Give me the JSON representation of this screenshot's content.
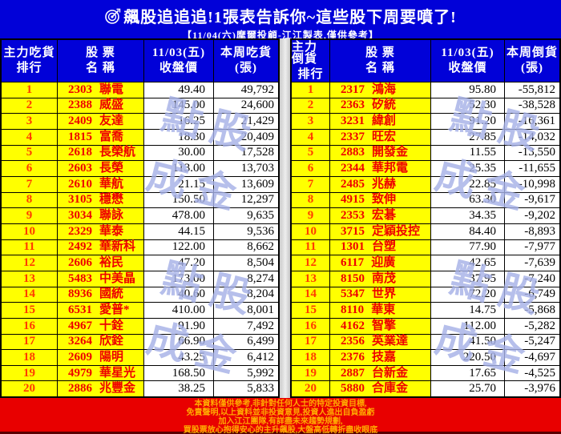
{
  "header": {
    "title": "飆股追追追!1張表告訴你~這些股下周要噴了!",
    "subtitle": "【11/04(六)摩爾投顧-江江製表,僅供參考】"
  },
  "watermark": {
    "line1": "點股",
    "line2": "成金"
  },
  "footer": {
    "lines": [
      "本資料僅供參考,非針對任何人士的特定投資目標,",
      "免責聲明,以上資料並非投資意見,投資人進出自負盈虧",
      "加入江江團隊,有詳盡未來趨勢規劃,",
      "買股票放心抱得安心的主升飆股,大盤高低轉折盡收眼底"
    ]
  },
  "colors": {
    "background_blue": "#0101D8",
    "cell_yellow": "#FFFF00",
    "rank_text": "#FF3C00",
    "name_text": "#EE0000",
    "footer_red": "#E80000",
    "footer_text": "#FFAA00",
    "watermark_blue": "#7A8ADA"
  },
  "chart_data": [
    {
      "type": "table",
      "title": "主力吃貨排行",
      "headers": [
        {
          "line1": "主力吃貨",
          "line2": "排行"
        },
        {
          "line1": "股 票",
          "line2": "名 稱"
        },
        {
          "line1": "11/03(五)",
          "line2": "收盤價"
        },
        {
          "line1": "本周吃貨",
          "line2": "(張)"
        }
      ],
      "rows": [
        [
          "1",
          "2303",
          "聯電",
          "49.40",
          "49,792"
        ],
        [
          "2",
          "2388",
          "威盛",
          "145.00",
          "24,600"
        ],
        [
          "3",
          "2409",
          "友達",
          "16.25",
          "21,429"
        ],
        [
          "4",
          "1815",
          "富喬",
          "18.30",
          "20,409"
        ],
        [
          "5",
          "2618",
          "長榮航",
          "30.00",
          "17,528"
        ],
        [
          "6",
          "2603",
          "長榮",
          "113.00",
          "13,703"
        ],
        [
          "7",
          "2610",
          "華航",
          "21.15",
          "13,609"
        ],
        [
          "8",
          "3105",
          "穩懋",
          "150.50",
          "12,297"
        ],
        [
          "9",
          "3034",
          "聯詠",
          "478.00",
          "9,635"
        ],
        [
          "10",
          "2329",
          "華泰",
          "44.15",
          "9,536"
        ],
        [
          "11",
          "2492",
          "華新科",
          "122.00",
          "8,662"
        ],
        [
          "12",
          "2606",
          "裕民",
          "47.20",
          "8,504"
        ],
        [
          "13",
          "5483",
          "中美晶",
          "173.00",
          "8,274"
        ],
        [
          "14",
          "8936",
          "國統",
          "40.60",
          "8,204"
        ],
        [
          "15",
          "6531",
          "愛普*",
          "410.00",
          "8,001"
        ],
        [
          "16",
          "4967",
          "十銓",
          "91.90",
          "7,492"
        ],
        [
          "17",
          "3264",
          "欣銓",
          "66.90",
          "6,499"
        ],
        [
          "18",
          "2609",
          "陽明",
          "43.25",
          "6,412"
        ],
        [
          "19",
          "4979",
          "華星光",
          "168.50",
          "5,992"
        ],
        [
          "20",
          "2886",
          "兆豐金",
          "38.25",
          "5,833"
        ]
      ]
    },
    {
      "type": "table",
      "title": "主力倒貨排行",
      "headers": [
        {
          "line1": "主力倒貨",
          "line2": "排行"
        },
        {
          "line1": "股 票",
          "line2": "名 稱"
        },
        {
          "line1": "11/03(五)",
          "line2": "收盤價"
        },
        {
          "line1": "本周倒貨",
          "line2": "(張)"
        }
      ],
      "rows": [
        [
          "1",
          "2317",
          "鴻海",
          "95.80",
          "-55,812"
        ],
        [
          "2",
          "2363",
          "矽統",
          "52.30",
          "-38,528"
        ],
        [
          "3",
          "3231",
          "緯創",
          "91.20",
          "-16,361"
        ],
        [
          "4",
          "2337",
          "旺宏",
          "27.85",
          "-14,032"
        ],
        [
          "5",
          "2883",
          "開發金",
          "11.55",
          "-13,550"
        ],
        [
          "6",
          "2344",
          "華邦電",
          "25.35",
          "-11,655"
        ],
        [
          "7",
          "2485",
          "兆赫",
          "22.85",
          "-10,998"
        ],
        [
          "8",
          "4915",
          "致伸",
          "63.30",
          "-9,617"
        ],
        [
          "9",
          "2353",
          "宏碁",
          "34.35",
          "-9,202"
        ],
        [
          "10",
          "3715",
          "定穎投控",
          "84.40",
          "-8,893"
        ],
        [
          "11",
          "1301",
          "台塑",
          "77.90",
          "-7,977"
        ],
        [
          "12",
          "6117",
          "迎廣",
          "42.65",
          "-7,639"
        ],
        [
          "13",
          "8150",
          "南茂",
          "37.95",
          "-7,240"
        ],
        [
          "14",
          "5347",
          "世界",
          "72.20",
          "-6,749"
        ],
        [
          "15",
          "8110",
          "華東",
          "14.75",
          "-5,868"
        ],
        [
          "16",
          "4162",
          "智擎",
          "112.00",
          "-5,282"
        ],
        [
          "17",
          "2356",
          "英業達",
          "41.50",
          "-5,247"
        ],
        [
          "18",
          "2376",
          "技嘉",
          "220.50",
          "-4,697"
        ],
        [
          "19",
          "2887",
          "台新金",
          "17.65",
          "-4,525"
        ],
        [
          "20",
          "5880",
          "合庫金",
          "25.70",
          "-3,976"
        ]
      ]
    }
  ]
}
